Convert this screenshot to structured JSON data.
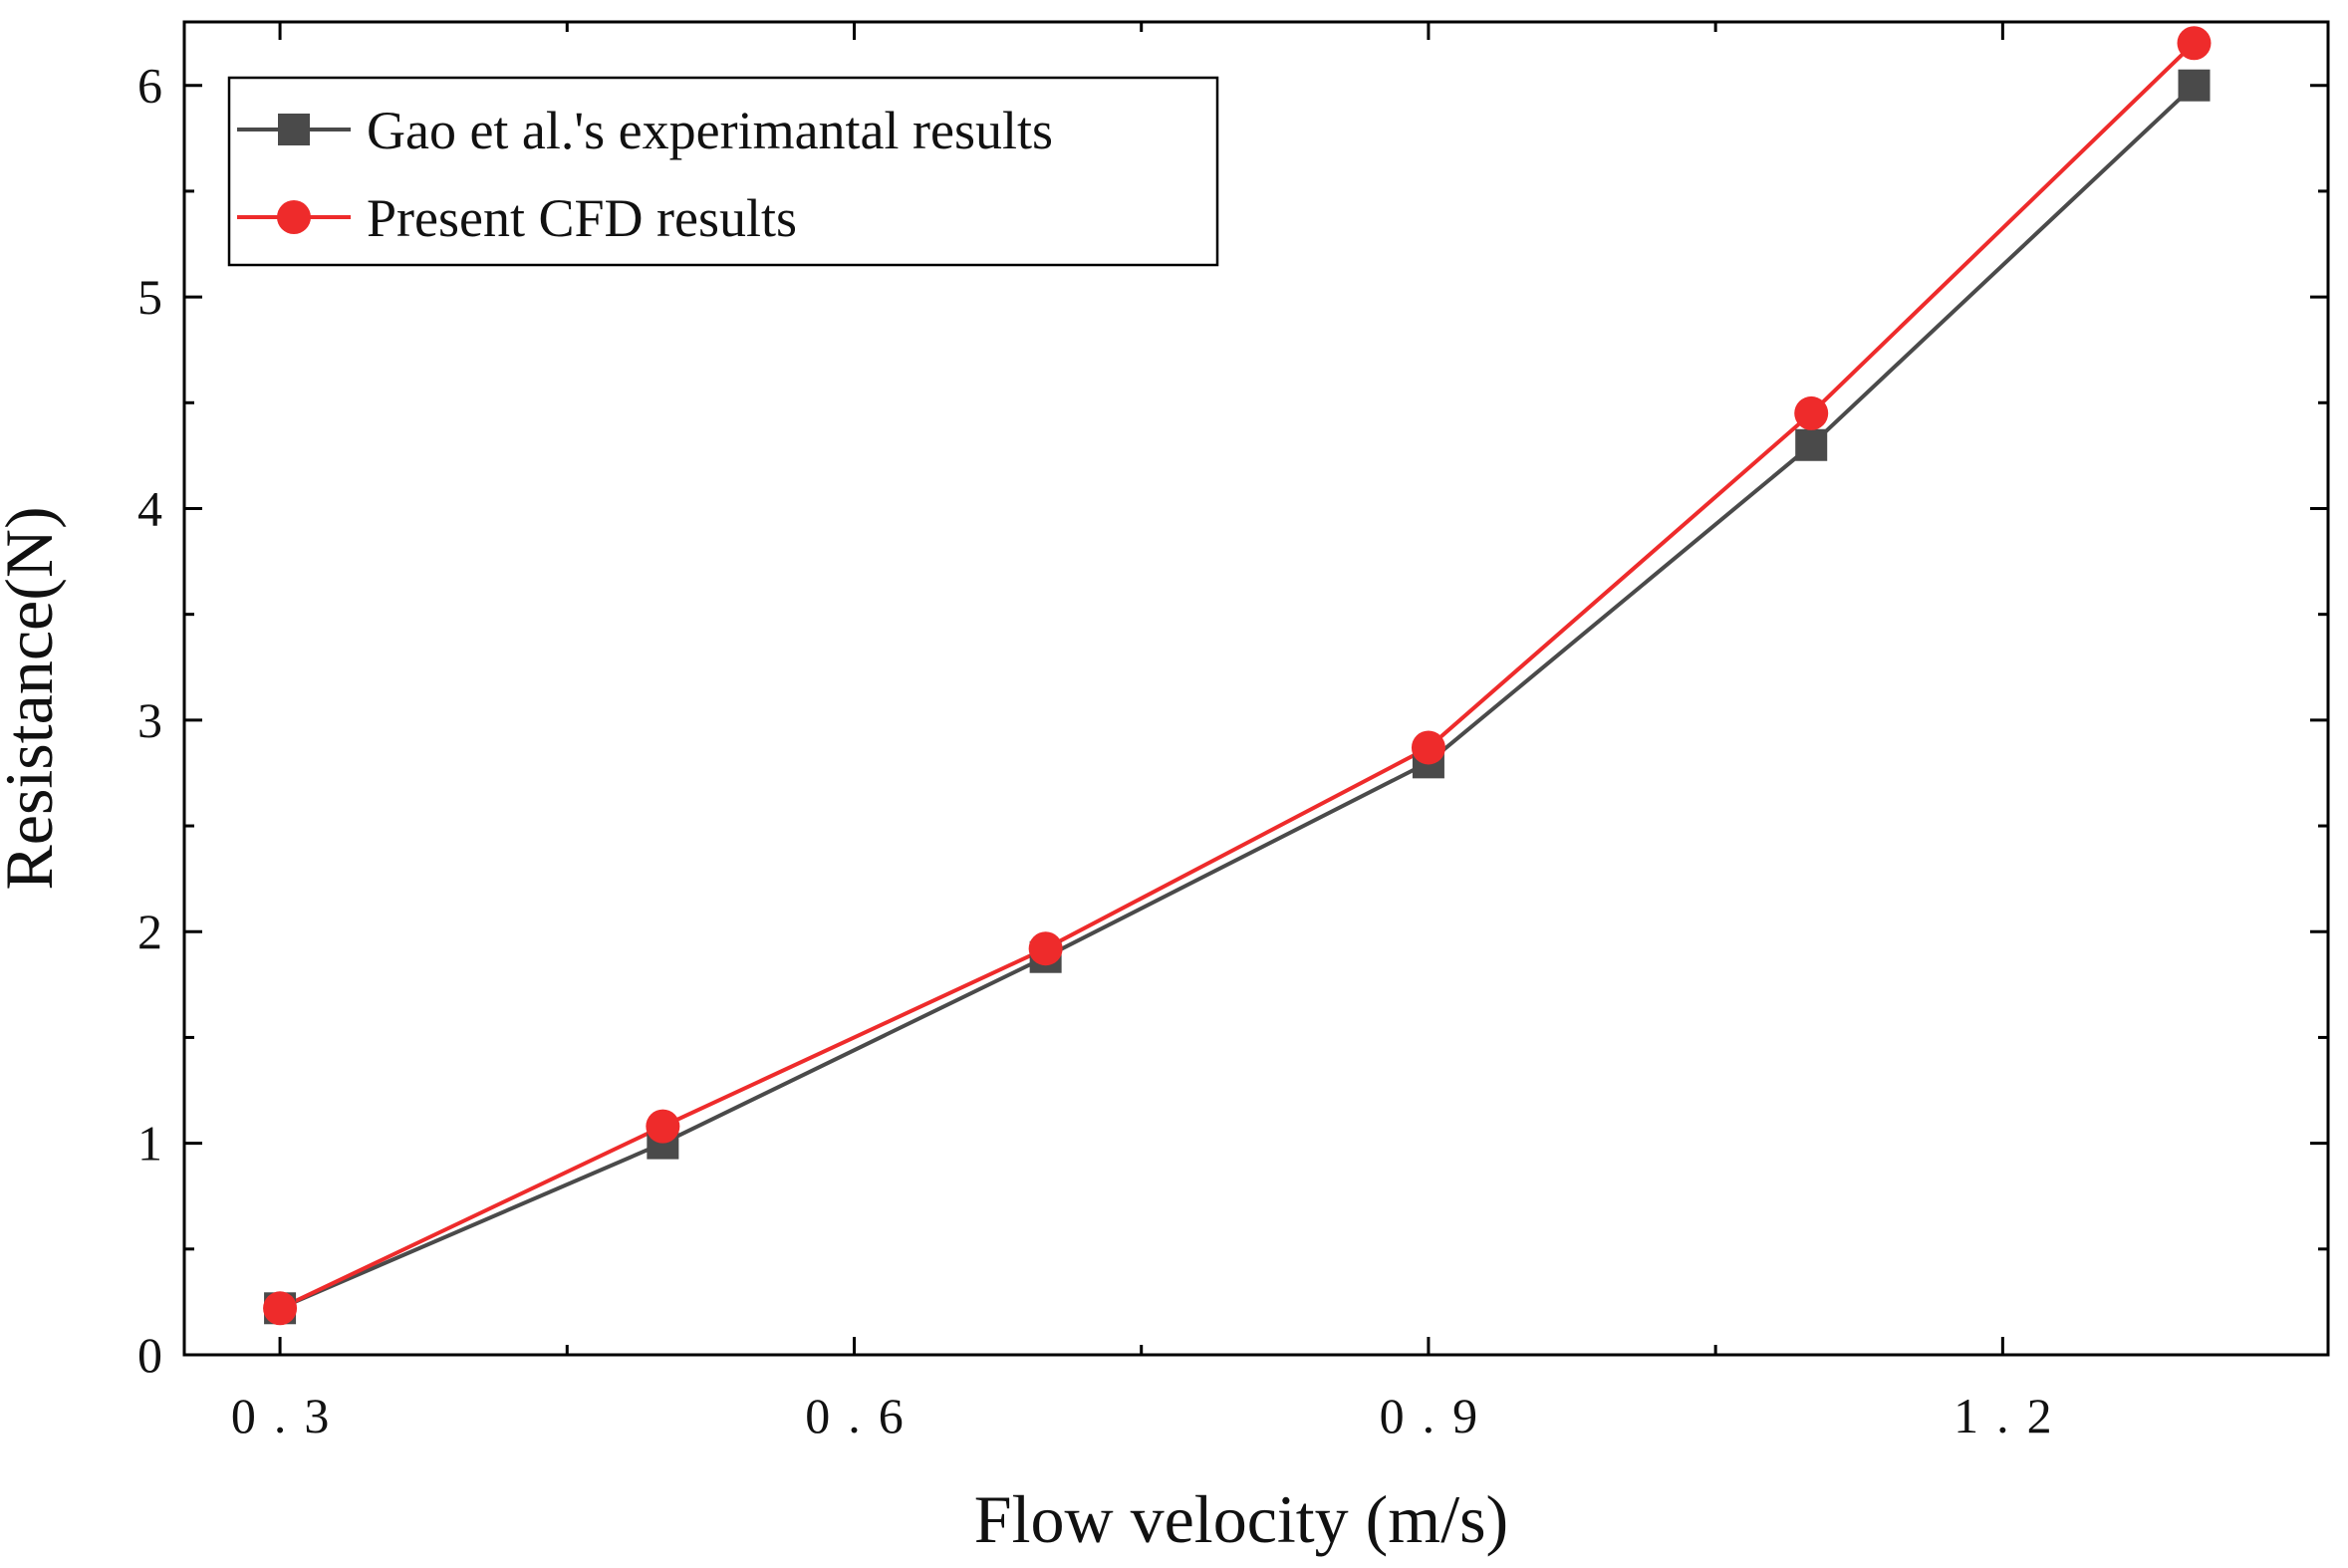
{
  "chart_data": {
    "type": "line",
    "title": "",
    "xlabel": "Flow velocity (m/s)",
    "ylabel": "Resistance(N)",
    "xlim": [
      0.25,
      1.37
    ],
    "ylim": [
      0,
      6.3
    ],
    "xticks": [
      0.3,
      0.6,
      0.9,
      1.2
    ],
    "xtick_labels": [
      "0.3",
      "0.6",
      "0.9",
      "1.2"
    ],
    "xminor_ticks": [
      0.45,
      0.75,
      1.05
    ],
    "yticks": [
      0,
      1,
      2,
      3,
      4,
      5,
      6
    ],
    "ytick_labels": [
      "0",
      "1",
      "2",
      "3",
      "4",
      "5",
      "6"
    ],
    "yminor_ticks": [
      0.5,
      1.5,
      2.5,
      3.5,
      4.5,
      5.5
    ],
    "grid": false,
    "legend_position": "top-left",
    "x": [
      0.3,
      0.5,
      0.7,
      0.9,
      1.1,
      1.3
    ],
    "series": [
      {
        "name": "Gao et al.'s experimantal results",
        "marker": "square",
        "color": "#4a4a4a",
        "values": [
          0.22,
          1.0,
          1.88,
          2.8,
          4.3,
          6.0
        ]
      },
      {
        "name": "Present CFD results",
        "marker": "circle",
        "color": "#ee2b2b",
        "values": [
          0.22,
          1.08,
          1.92,
          2.87,
          4.45,
          6.2
        ]
      }
    ]
  }
}
